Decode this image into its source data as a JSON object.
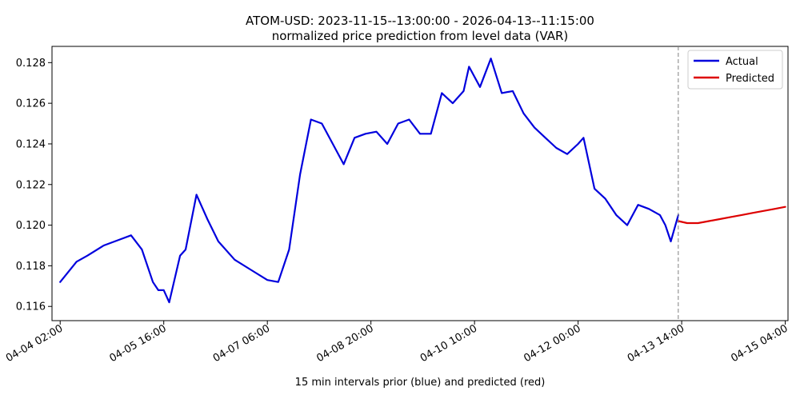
{
  "chart_data": {
    "type": "line",
    "title": "ATOM-USD: 2023-11-15--13:00:00 - 2026-04-13--11:15:00",
    "subtitle": "normalized price prediction from level data (VAR)",
    "xlabel": "15 min intervals prior (blue) and predicted (red)",
    "ylabel": "",
    "x_unit": "date-time (15 min intervals)",
    "xlim": [
      "04-03 23:00",
      "04-15 05:00"
    ],
    "ylim": [
      0.1153,
      0.1288
    ],
    "x_ticks": [
      "04-04 02:00",
      "04-05 16:00",
      "04-07 06:00",
      "04-08 20:00",
      "04-10 10:00",
      "04-12 00:00",
      "04-13 14:00",
      "04-15 04:00"
    ],
    "y_ticks": [
      {
        "value": 0.116,
        "label": "0.116"
      },
      {
        "value": 0.118,
        "label": "0.118"
      },
      {
        "value": 0.12,
        "label": "0.120"
      },
      {
        "value": 0.122,
        "label": "0.122"
      },
      {
        "value": 0.124,
        "label": "0.124"
      },
      {
        "value": 0.126,
        "label": "0.126"
      },
      {
        "value": 0.128,
        "label": "0.128"
      }
    ],
    "vline": {
      "x": "04-13 12:45",
      "style": "dashed",
      "color": "#808080"
    },
    "legend": {
      "position": "top-right"
    },
    "grid": false,
    "series": [
      {
        "name": "Actual",
        "color": "#0000dd",
        "x": [
          "04-04 02:00",
          "04-04 08:00",
          "04-04 12:00",
          "04-04 18:00",
          "04-05 00:00",
          "04-05 04:00",
          "04-05 08:00",
          "04-05 12:00",
          "04-05 14:00",
          "04-05 16:00",
          "04-05 18:00",
          "04-05 22:00",
          "04-06 00:00",
          "04-06 04:00",
          "04-06 08:00",
          "04-06 12:00",
          "04-06 18:00",
          "04-07 00:00",
          "04-07 06:00",
          "04-07 10:00",
          "04-07 14:00",
          "04-07 18:00",
          "04-07 22:00",
          "04-08 02:00",
          "04-08 06:00",
          "04-08 10:00",
          "04-08 14:00",
          "04-08 18:00",
          "04-08 22:00",
          "04-09 02:00",
          "04-09 06:00",
          "04-09 10:00",
          "04-09 14:00",
          "04-09 18:00",
          "04-09 22:00",
          "04-10 02:00",
          "04-10 06:00",
          "04-10 08:00",
          "04-10 12:00",
          "04-10 16:00",
          "04-10 20:00",
          "04-11 00:00",
          "04-11 04:00",
          "04-11 08:00",
          "04-11 12:00",
          "04-11 16:00",
          "04-11 20:00",
          "04-12 00:00",
          "04-12 02:00",
          "04-12 06:00",
          "04-12 10:00",
          "04-12 14:00",
          "04-12 18:00",
          "04-12 22:00",
          "04-13 02:00",
          "04-13 06:00",
          "04-13 08:00",
          "04-13 10:00",
          "04-13 12:45"
        ],
        "values": [
          0.1172,
          0.1182,
          0.1185,
          0.119,
          0.1193,
          0.1195,
          0.1188,
          0.1172,
          0.1168,
          0.1168,
          0.1162,
          0.1185,
          0.1188,
          0.1215,
          0.1203,
          0.1192,
          0.1183,
          0.1178,
          0.1173,
          0.1172,
          0.1188,
          0.1225,
          0.1252,
          0.125,
          0.124,
          0.123,
          0.1243,
          0.1245,
          0.1246,
          0.124,
          0.125,
          0.1252,
          0.1245,
          0.1245,
          0.1265,
          0.126,
          0.1266,
          0.1278,
          0.1268,
          0.1282,
          0.1265,
          0.1266,
          0.1255,
          0.1248,
          0.1243,
          0.1238,
          0.1235,
          0.124,
          0.1243,
          0.1218,
          0.1213,
          0.1205,
          0.12,
          0.121,
          0.1208,
          0.1205,
          0.12,
          0.1192,
          0.1205
        ]
      },
      {
        "name": "Predicted",
        "color": "#dd0000",
        "x": [
          "04-13 12:45",
          "04-13 16:00",
          "04-13 20:00",
          "04-14 00:00",
          "04-14 04:00",
          "04-14 08:00",
          "04-14 12:00",
          "04-14 16:00",
          "04-14 20:00",
          "04-15 00:00",
          "04-15 04:00"
        ],
        "values": [
          0.1202,
          0.1201,
          0.1201,
          0.1202,
          0.1203,
          0.1204,
          0.1205,
          0.1206,
          0.1207,
          0.1208,
          0.1209
        ]
      }
    ]
  }
}
